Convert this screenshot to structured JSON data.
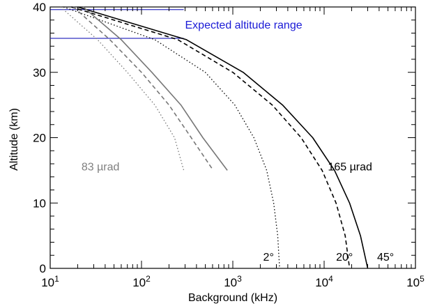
{
  "chart_data": {
    "type": "line",
    "title": "",
    "xlabel": "Background (kHz)",
    "ylabel": "Altitude (km)",
    "xscale": "log",
    "xlim": [
      10,
      100000
    ],
    "ylim": [
      0,
      40
    ],
    "grid": false,
    "legend": "none",
    "x_ticks": [
      {
        "value": 10,
        "base": "10",
        "exp": "1"
      },
      {
        "value": 100,
        "base": "10",
        "exp": "2"
      },
      {
        "value": 1000,
        "base": "10",
        "exp": "3"
      },
      {
        "value": 10000,
        "base": "10",
        "exp": "4"
      },
      {
        "value": 100000,
        "base": "10",
        "exp": "5"
      }
    ],
    "y_ticks": [
      {
        "value": 0,
        "label": "0"
      },
      {
        "value": 10,
        "label": "10"
      },
      {
        "value": 20,
        "label": "20"
      },
      {
        "value": 30,
        "label": "30"
      },
      {
        "value": 40,
        "label": "40"
      }
    ],
    "series": [
      {
        "group": "165 µrad",
        "angle": "45°",
        "style": "solid",
        "color": "#000000",
        "points": [
          [
            20,
            40
          ],
          [
            310,
            35
          ],
          [
            1300,
            30
          ],
          [
            3500,
            25
          ],
          [
            7500,
            20
          ],
          [
            13000,
            15
          ],
          [
            19000,
            10
          ],
          [
            25000,
            5
          ],
          [
            30000,
            0
          ]
        ]
      },
      {
        "group": "165 µrad",
        "angle": "20°",
        "style": "dashed",
        "color": "#000000",
        "points": [
          [
            17,
            40
          ],
          [
            250,
            35
          ],
          [
            1000,
            30
          ],
          [
            2700,
            25
          ],
          [
            5600,
            20
          ],
          [
            9500,
            15
          ],
          [
            13500,
            10
          ],
          [
            17000,
            5
          ],
          [
            19000,
            0
          ]
        ]
      },
      {
        "group": "165 µrad",
        "angle": "2°",
        "style": "dotted",
        "color": "#000000",
        "points": [
          [
            14,
            40
          ],
          [
            140,
            35
          ],
          [
            500,
            30
          ],
          [
            1050,
            25
          ],
          [
            1700,
            20
          ],
          [
            2350,
            15
          ],
          [
            2800,
            10
          ],
          [
            3100,
            5
          ],
          [
            3250,
            0
          ]
        ]
      },
      {
        "group": "83 µrad",
        "style": "solid",
        "color": "#777777",
        "points": [
          [
            23,
            40
          ],
          [
            60,
            35
          ],
          [
            130,
            30
          ],
          [
            270,
            25
          ],
          [
            470,
            20
          ],
          [
            870,
            15
          ]
        ]
      },
      {
        "group": "83 µrad",
        "style": "dashed",
        "color": "#777777",
        "points": [
          [
            18,
            40
          ],
          [
            45,
            35
          ],
          [
            100,
            30
          ],
          [
            200,
            25
          ],
          [
            350,
            20
          ],
          [
            610,
            15
          ]
        ]
      },
      {
        "group": "83 µrad",
        "style": "dotted",
        "color": "#777777",
        "points": [
          [
            13,
            40
          ],
          [
            33,
            35
          ],
          [
            70,
            30
          ],
          [
            140,
            25
          ],
          [
            230,
            20
          ],
          [
            290,
            15
          ]
        ]
      }
    ],
    "annotations": [
      {
        "text": "83 µrad",
        "x": 22,
        "y": 15,
        "color": "#808080"
      },
      {
        "text": "165 µrad",
        "x": 11000,
        "y": 15,
        "color": "#000000"
      },
      {
        "text": "2°",
        "x": 2150,
        "y": 1.2,
        "color": "#000000"
      },
      {
        "text": "20°",
        "x": 13500,
        "y": 1.2,
        "color": "#000000"
      },
      {
        "text": "45°",
        "x": 38000,
        "y": 1.2,
        "color": "#000000"
      },
      {
        "text": "Expected altitude range",
        "x": 300,
        "y": 36.7,
        "color": "#1a1ad6"
      }
    ],
    "reference_lines": [
      {
        "y": 39.6,
        "x_start": 10,
        "x_end": 290,
        "color": "#3030c0"
      },
      {
        "y": 35.2,
        "x_start": 10,
        "x_end": 290,
        "color": "#3030c0"
      }
    ]
  }
}
